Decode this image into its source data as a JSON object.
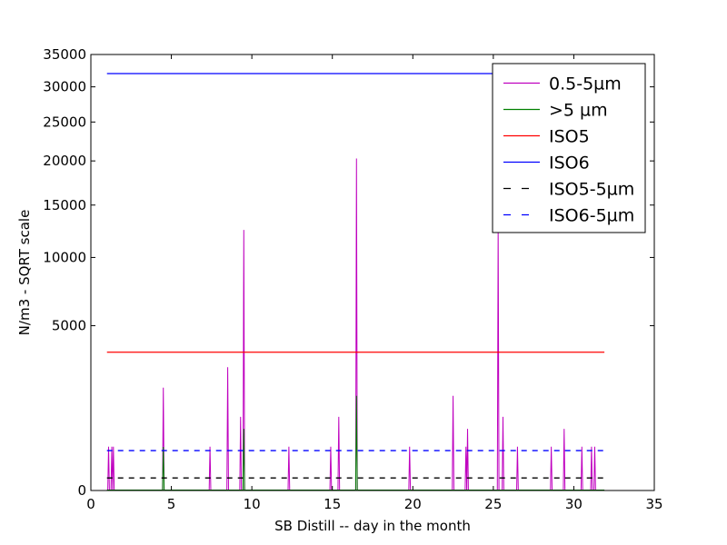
{
  "chart_data": {
    "type": "line",
    "title": "",
    "xlabel": "SB Distill -- day in the month",
    "ylabel": "N/m3 - SQRT scale",
    "y_scale": "sqrt",
    "xlim": [
      0,
      35
    ],
    "ylim": [
      0,
      35000
    ],
    "x_ticks": [
      0,
      5,
      10,
      15,
      20,
      25,
      30,
      35
    ],
    "y_ticks": [
      0,
      5000,
      10000,
      15000,
      20000,
      25000,
      30000,
      35000
    ],
    "grid": false,
    "legend_position": "top-right",
    "series": [
      {
        "name": "0.5-5µm",
        "color": "#bf00bf",
        "style": "solid",
        "type": "spikes",
        "spikes": [
          {
            "x": 1.1,
            "y": 353
          },
          {
            "x": 1.3,
            "y": 353
          },
          {
            "x": 1.4,
            "y": 353
          },
          {
            "x": 4.5,
            "y": 1950
          },
          {
            "x": 7.4,
            "y": 353
          },
          {
            "x": 8.5,
            "y": 2800
          },
          {
            "x": 9.3,
            "y": 1000
          },
          {
            "x": 9.5,
            "y": 12500
          },
          {
            "x": 12.3,
            "y": 353
          },
          {
            "x": 14.9,
            "y": 353
          },
          {
            "x": 15.4,
            "y": 1000
          },
          {
            "x": 16.5,
            "y": 20300
          },
          {
            "x": 19.8,
            "y": 353
          },
          {
            "x": 22.5,
            "y": 1650
          },
          {
            "x": 23.3,
            "y": 353
          },
          {
            "x": 23.4,
            "y": 700
          },
          {
            "x": 25.3,
            "y": 13000
          },
          {
            "x": 25.6,
            "y": 1000
          },
          {
            "x": 26.5,
            "y": 353
          },
          {
            "x": 28.6,
            "y": 353
          },
          {
            "x": 29.4,
            "y": 700
          },
          {
            "x": 30.5,
            "y": 353
          },
          {
            "x": 31.1,
            "y": 353
          },
          {
            "x": 31.3,
            "y": 353
          }
        ]
      },
      {
        "name": ">5 µm",
        "color": "#008000",
        "style": "solid",
        "type": "spikes",
        "spikes": [
          {
            "x": 4.5,
            "y": 350
          },
          {
            "x": 9.5,
            "y": 700
          },
          {
            "x": 16.5,
            "y": 1650
          }
        ]
      },
      {
        "name": "ISO5",
        "color": "#ff0000",
        "style": "solid",
        "type": "hline",
        "y": 3520,
        "x": [
          1,
          31.9
        ]
      },
      {
        "name": "ISO6",
        "color": "#0000ff",
        "style": "solid",
        "type": "hline",
        "y": 32000,
        "x": [
          1,
          31.9
        ]
      },
      {
        "name": "ISO5-5µm",
        "color": "#000000",
        "style": "dashed",
        "type": "hline",
        "y": 29,
        "x": [
          1,
          31.9
        ]
      },
      {
        "name": "ISO6-5µm",
        "color": "#0000ff",
        "style": "dashed",
        "type": "hline",
        "y": 293,
        "x": [
          1,
          31.9
        ]
      }
    ]
  }
}
